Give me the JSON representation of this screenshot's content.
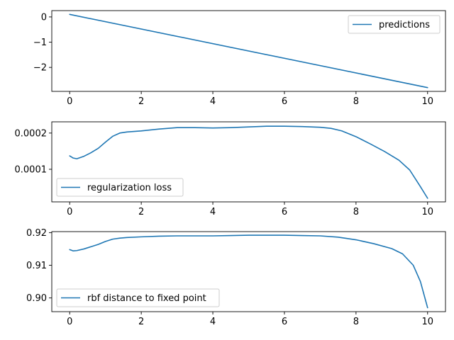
{
  "colors": {
    "series": "#1f77b4",
    "axes": "#000000",
    "legend_border": "#cccccc",
    "background": "#ffffff"
  },
  "chart_data": [
    {
      "type": "line",
      "title": "",
      "xlabel": "",
      "ylabel": "",
      "xlim": [
        -0.5,
        10.5
      ],
      "ylim": [
        -2.95,
        0.25
      ],
      "xticks": [
        0,
        2,
        4,
        6,
        8,
        10
      ],
      "xtick_labels": [
        "0",
        "2",
        "4",
        "6",
        "8",
        "10"
      ],
      "yticks": [
        0,
        -1,
        -2
      ],
      "ytick_labels": [
        "0",
        "−1",
        "−2"
      ],
      "legend_position": "upper right",
      "series": [
        {
          "name": "predictions",
          "x": [
            0,
            10
          ],
          "y": [
            0.1,
            -2.8
          ]
        }
      ]
    },
    {
      "type": "line",
      "title": "",
      "xlabel": "",
      "ylabel": "",
      "xlim": [
        -0.5,
        10.5
      ],
      "ylim": [
        1e-05,
        0.000231
      ],
      "xticks": [
        0,
        2,
        4,
        6,
        8,
        10
      ],
      "xtick_labels": [
        "0",
        "2",
        "4",
        "6",
        "8",
        "10"
      ],
      "yticks": [
        0.0001,
        0.0002
      ],
      "ytick_labels": [
        "0.0001",
        "0.0002"
      ],
      "legend_position": "lower left",
      "series": [
        {
          "name": "regularization loss",
          "x": [
            0,
            0.1,
            0.2,
            0.4,
            0.6,
            0.8,
            1.0,
            1.2,
            1.4,
            1.6,
            2.0,
            2.5,
            3.0,
            3.5,
            4.0,
            4.5,
            5.0,
            5.5,
            6.0,
            6.5,
            7.0,
            7.3,
            7.6,
            8.0,
            8.4,
            8.8,
            9.2,
            9.5,
            9.8,
            10.0
          ],
          "y": [
            0.000137,
            0.000131,
            0.000129,
            0.000136,
            0.000146,
            0.000158,
            0.000175,
            0.000191,
            0.0002,
            0.000203,
            0.000206,
            0.000211,
            0.000215,
            0.000215,
            0.000214,
            0.000215,
            0.000217,
            0.000219,
            0.000219,
            0.000218,
            0.000216,
            0.000213,
            0.000206,
            0.00019,
            0.00017,
            0.000149,
            0.000125,
            9.8e-05,
            5.2e-05,
            2e-05
          ]
        }
      ]
    },
    {
      "type": "line",
      "title": "",
      "xlabel": "",
      "ylabel": "",
      "xlim": [
        -0.5,
        10.5
      ],
      "ylim": [
        0.8958,
        0.9203
      ],
      "xticks": [
        0,
        2,
        4,
        6,
        8,
        10
      ],
      "xtick_labels": [
        "0",
        "2",
        "4",
        "6",
        "8",
        "10"
      ],
      "yticks": [
        0.9,
        0.91,
        0.92
      ],
      "ytick_labels": [
        "0.90",
        "0.91",
        "0.92"
      ],
      "legend_position": "lower left",
      "series": [
        {
          "name": "rbf distance to fixed point",
          "x": [
            0,
            0.1,
            0.2,
            0.4,
            0.6,
            0.8,
            1.0,
            1.2,
            1.4,
            1.6,
            2.0,
            2.5,
            3.0,
            3.5,
            4.0,
            4.5,
            5.0,
            5.5,
            6.0,
            6.5,
            7.0,
            7.5,
            8.0,
            8.5,
            9.0,
            9.3,
            9.6,
            9.8,
            9.95,
            10.0
          ],
          "y": [
            0.9148,
            0.9144,
            0.9145,
            0.915,
            0.9157,
            0.9164,
            0.9173,
            0.918,
            0.9183,
            0.9185,
            0.9187,
            0.9189,
            0.919,
            0.919,
            0.919,
            0.9191,
            0.9192,
            0.9192,
            0.9192,
            0.9191,
            0.919,
            0.9186,
            0.9178,
            0.9166,
            0.9151,
            0.9135,
            0.91,
            0.905,
            0.899,
            0.897
          ]
        }
      ]
    }
  ]
}
